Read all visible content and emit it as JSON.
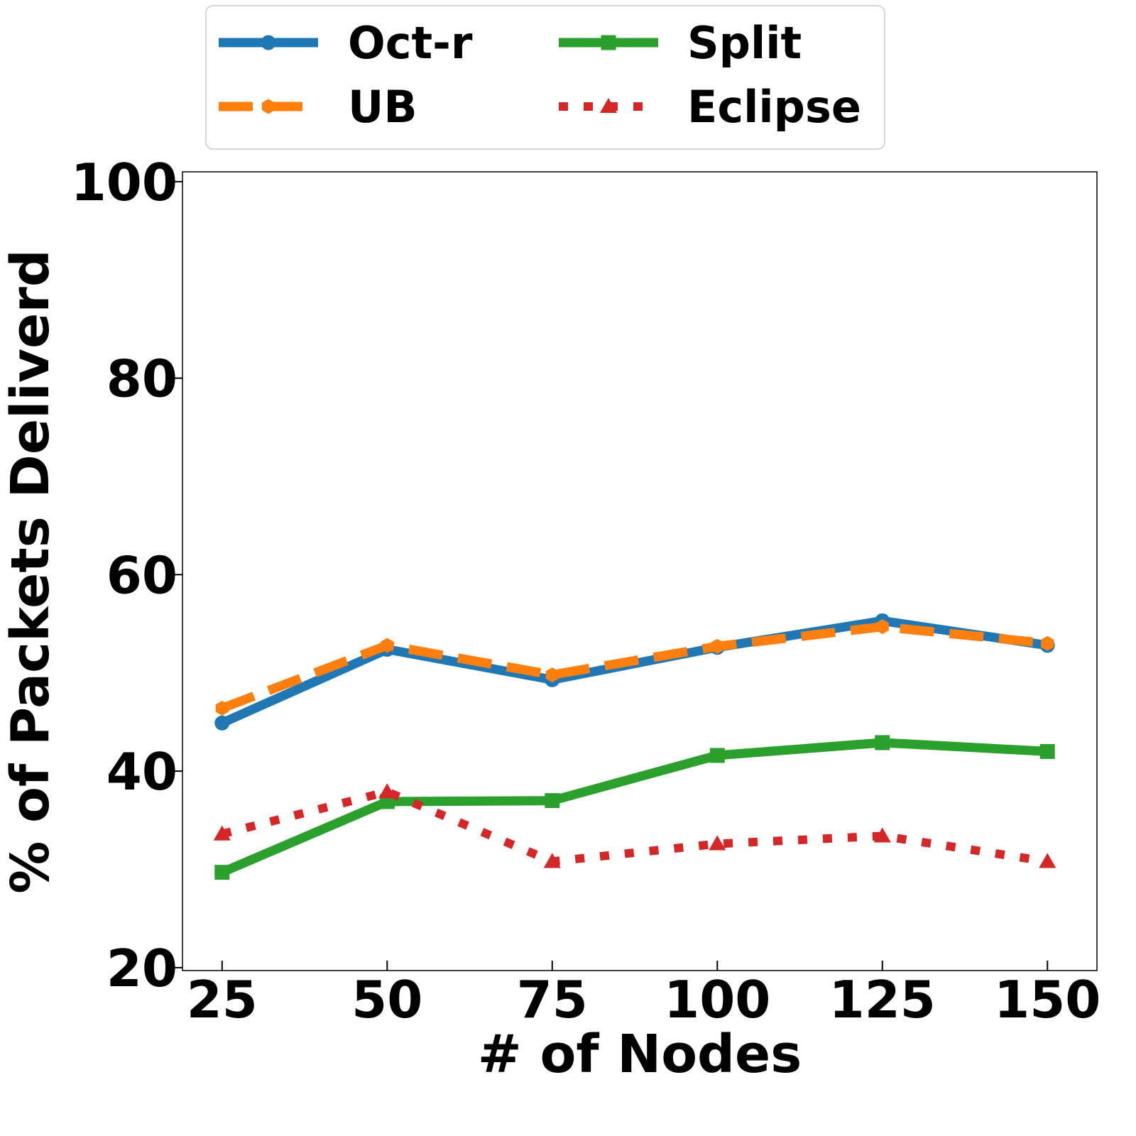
{
  "chart_data": {
    "type": "line",
    "xlabel": "# of Nodes",
    "ylabel": "% of Packets Deliverd",
    "x": [
      25,
      50,
      75,
      100,
      125,
      150
    ],
    "xticks": [
      "25",
      "50",
      "75",
      "100",
      "125",
      "150"
    ],
    "yticks": [
      "20",
      "40",
      "60",
      "80",
      "100"
    ],
    "xlim": [
      19,
      157.5
    ],
    "ylim": [
      19.7,
      101
    ],
    "grid": false,
    "legend_position": "top-center",
    "series": [
      {
        "name": "Oct-r",
        "color": "#1f77b4",
        "style": "solid",
        "marker": "circle",
        "values": [
          44.9,
          52.4,
          49.3,
          52.6,
          55.3,
          52.8
        ]
      },
      {
        "name": "UB",
        "color": "#ff7f0e",
        "style": "dashed",
        "marker": "hexagon",
        "values": [
          46.4,
          52.8,
          49.8,
          52.7,
          54.7,
          53.0
        ]
      },
      {
        "name": "Split",
        "color": "#2ca02c",
        "style": "solid",
        "marker": "square",
        "values": [
          29.7,
          36.9,
          37.0,
          41.6,
          42.9,
          42.0
        ]
      },
      {
        "name": "Eclipse",
        "color": "#d62728",
        "style": "dotted",
        "marker": "triangle",
        "values": [
          33.6,
          37.9,
          30.8,
          32.6,
          33.4,
          30.8
        ]
      }
    ]
  }
}
